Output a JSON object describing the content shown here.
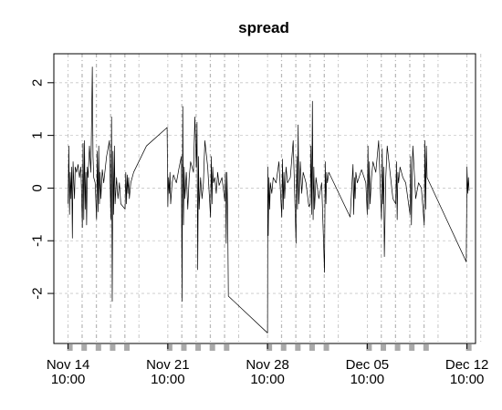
{
  "chart_data": {
    "type": "line",
    "title": "spread",
    "xlabel": "",
    "ylabel": "",
    "x_tick_labels": [
      {
        "date": "Nov 14",
        "time": "10:00"
      },
      {
        "date": "Nov 21",
        "time": "10:00"
      },
      {
        "date": "Nov 28",
        "time": "10:00"
      },
      {
        "date": "Dec 05",
        "time": "10:00"
      },
      {
        "date": "Dec 12",
        "time": "10:00"
      }
    ],
    "y_ticks": [
      -2,
      -1,
      0,
      1,
      2
    ],
    "ylim": [
      -2.95,
      2.55
    ],
    "xlim_days": [
      -1.0,
      28.6
    ],
    "grid": true,
    "legend": "none",
    "session_days": [
      0,
      1,
      2,
      3,
      4,
      7,
      8,
      9,
      10,
      11,
      14,
      15,
      16,
      17,
      18,
      21,
      22,
      23,
      24,
      25,
      28
    ],
    "day_markers": [
      0,
      1,
      2,
      3,
      4,
      7,
      8,
      9,
      10,
      11,
      14,
      15,
      16,
      17,
      18,
      21,
      22,
      23,
      24,
      25,
      28
    ],
    "series": [
      {
        "values": [
          [
            0.0,
            -0.3
          ],
          [
            0.05,
            0.8
          ],
          [
            0.1,
            -0.5
          ],
          [
            0.15,
            0.3
          ],
          [
            0.2,
            -0.2
          ],
          [
            0.25,
            0.4
          ],
          [
            0.3,
            -0.95
          ],
          [
            0.35,
            0.5
          ],
          [
            0.4,
            0.1
          ],
          [
            0.45,
            -0.2
          ],
          [
            0.5,
            0.4
          ],
          [
            0.6,
            0.3
          ],
          [
            0.7,
            0.45
          ],
          [
            0.8,
            0.2
          ],
          [
            0.9,
            0.4
          ],
          [
            1.0,
            -0.75
          ],
          [
            1.05,
            0.85
          ],
          [
            1.1,
            -0.6
          ],
          [
            1.15,
            0.9
          ],
          [
            1.2,
            -0.4
          ],
          [
            1.25,
            0.3
          ],
          [
            1.3,
            -0.7
          ],
          [
            1.35,
            0.4
          ],
          [
            1.4,
            0.2
          ],
          [
            1.5,
            0.8
          ],
          [
            1.6,
            0.3
          ],
          [
            1.7,
            2.3
          ],
          [
            1.75,
            0.6
          ],
          [
            1.8,
            0.2
          ],
          [
            1.9,
            0.1
          ],
          [
            2.0,
            -0.6
          ],
          [
            2.05,
            0.7
          ],
          [
            2.1,
            -0.45
          ],
          [
            2.15,
            0.8
          ],
          [
            2.2,
            -0.3
          ],
          [
            2.25,
            0.3
          ],
          [
            2.3,
            -0.2
          ],
          [
            2.4,
            0.35
          ],
          [
            2.5,
            0.1
          ],
          [
            2.7,
            0.6
          ],
          [
            2.9,
            0.9
          ],
          [
            3.0,
            -0.6
          ],
          [
            3.05,
            1.35
          ],
          [
            3.1,
            -2.15
          ],
          [
            3.15,
            0.7
          ],
          [
            3.2,
            -0.5
          ],
          [
            3.25,
            0.8
          ],
          [
            3.3,
            -0.3
          ],
          [
            3.4,
            0.2
          ],
          [
            3.5,
            -0.2
          ],
          [
            3.6,
            0.1
          ],
          [
            3.7,
            -0.3
          ],
          [
            4.0,
            -0.4
          ],
          [
            4.05,
            0.3
          ],
          [
            4.1,
            -0.3
          ],
          [
            4.15,
            0.25
          ],
          [
            4.2,
            -0.1
          ],
          [
            4.25,
            0.2
          ],
          [
            4.3,
            -0.2
          ],
          [
            4.4,
            0.1
          ],
          [
            4.6,
            0.3
          ],
          [
            5.5,
            0.8
          ],
          [
            6.95,
            1.15
          ],
          [
            7.0,
            -0.35
          ],
          [
            7.05,
            0.2
          ],
          [
            7.1,
            -0.1
          ],
          [
            7.15,
            0.3
          ],
          [
            7.2,
            -0.3
          ],
          [
            7.3,
            0.1
          ],
          [
            7.4,
            0.25
          ],
          [
            7.6,
            0.1
          ],
          [
            7.8,
            0.4
          ],
          [
            7.95,
            0.6
          ],
          [
            8.0,
            -2.15
          ],
          [
            8.05,
            1.55
          ],
          [
            8.1,
            -0.7
          ],
          [
            8.15,
            0.4
          ],
          [
            8.2,
            -0.2
          ],
          [
            8.3,
            0.3
          ],
          [
            8.4,
            -0.4
          ],
          [
            8.5,
            0.2
          ],
          [
            8.6,
            0.5
          ],
          [
            8.8,
            0.3
          ],
          [
            8.9,
            1.35
          ],
          [
            9.0,
            0.4
          ],
          [
            9.05,
            1.25
          ],
          [
            9.1,
            -1.55
          ],
          [
            9.15,
            0.6
          ],
          [
            9.2,
            -0.4
          ],
          [
            9.3,
            0.2
          ],
          [
            9.4,
            -0.2
          ],
          [
            9.5,
            0.1
          ],
          [
            9.6,
            0.9
          ],
          [
            9.8,
            0.4
          ],
          [
            10.0,
            -0.55
          ],
          [
            10.05,
            0.6
          ],
          [
            10.1,
            -0.3
          ],
          [
            10.15,
            0.4
          ],
          [
            10.2,
            0.1
          ],
          [
            10.3,
            0.2
          ],
          [
            10.4,
            -0.1
          ],
          [
            10.5,
            0.3
          ],
          [
            10.6,
            0.05
          ],
          [
            10.8,
            0.2
          ],
          [
            11.0,
            -0.25
          ],
          [
            11.05,
            0.3
          ],
          [
            11.1,
            -1.05
          ],
          [
            11.15,
            0.3
          ],
          [
            11.2,
            -0.4
          ],
          [
            11.25,
            -2.05
          ],
          [
            14.0,
            -2.75
          ],
          [
            14.02,
            0.4
          ],
          [
            14.05,
            -0.9
          ],
          [
            14.1,
            0.2
          ],
          [
            14.15,
            -0.4
          ],
          [
            14.2,
            0.1
          ],
          [
            14.3,
            -0.1
          ],
          [
            14.4,
            0.2
          ],
          [
            14.6,
            0.1
          ],
          [
            14.8,
            0.5
          ],
          [
            15.0,
            -0.55
          ],
          [
            15.05,
            0.55
          ],
          [
            15.1,
            -0.4
          ],
          [
            15.15,
            0.3
          ],
          [
            15.2,
            -0.2
          ],
          [
            15.3,
            0.4
          ],
          [
            15.4,
            0.1
          ],
          [
            15.6,
            0.2
          ],
          [
            15.8,
            0.9
          ],
          [
            16.0,
            -1.05
          ],
          [
            16.05,
            0.6
          ],
          [
            16.1,
            -0.4
          ],
          [
            16.15,
            1.2
          ],
          [
            16.2,
            -0.3
          ],
          [
            16.3,
            0.5
          ],
          [
            16.4,
            -0.1
          ],
          [
            16.5,
            0.3
          ],
          [
            16.7,
            0.1
          ],
          [
            16.9,
            -0.35
          ],
          [
            17.0,
            -0.3
          ],
          [
            17.05,
            0.8
          ],
          [
            17.1,
            -0.5
          ],
          [
            17.15,
            1.65
          ],
          [
            17.2,
            -0.6
          ],
          [
            17.25,
            0.4
          ],
          [
            17.3,
            -0.4
          ],
          [
            17.4,
            0.2
          ],
          [
            17.6,
            -0.2
          ],
          [
            17.8,
            0.1
          ],
          [
            18.0,
            -1.6
          ],
          [
            18.05,
            0.5
          ],
          [
            18.1,
            -0.3
          ],
          [
            18.15,
            0.3
          ],
          [
            18.2,
            0.1
          ],
          [
            18.3,
            0.3
          ],
          [
            19.8,
            -0.55
          ],
          [
            20.0,
            0.45
          ],
          [
            20.05,
            -0.5
          ],
          [
            20.1,
            0.2
          ],
          [
            20.15,
            -0.2
          ],
          [
            20.2,
            0.3
          ],
          [
            20.3,
            0.1
          ],
          [
            20.6,
            0.35
          ],
          [
            20.9,
            0.1
          ],
          [
            21.0,
            -0.5
          ],
          [
            21.05,
            0.8
          ],
          [
            21.1,
            -0.4
          ],
          [
            21.15,
            0.5
          ],
          [
            21.2,
            -0.3
          ],
          [
            21.3,
            0.2
          ],
          [
            21.4,
            0.5
          ],
          [
            21.6,
            0.3
          ],
          [
            21.8,
            0.9
          ],
          [
            22.0,
            -0.6
          ],
          [
            22.05,
            0.75
          ],
          [
            22.1,
            -0.3
          ],
          [
            22.15,
            0.4
          ],
          [
            22.2,
            -1.3
          ],
          [
            22.3,
            0.2
          ],
          [
            22.4,
            0.8
          ],
          [
            22.6,
            0.3
          ],
          [
            22.8,
            -0.2
          ],
          [
            23.0,
            -0.3
          ],
          [
            23.05,
            0.5
          ],
          [
            23.1,
            -0.6
          ],
          [
            23.15,
            0.3
          ],
          [
            23.2,
            0.1
          ],
          [
            23.3,
            0.4
          ],
          [
            23.5,
            0.2
          ],
          [
            23.7,
            0.1
          ],
          [
            24.0,
            -0.5
          ],
          [
            24.05,
            0.6
          ],
          [
            24.1,
            -0.7
          ],
          [
            24.15,
            0.2
          ],
          [
            24.2,
            0.8
          ],
          [
            24.3,
            0.3
          ],
          [
            24.4,
            -0.2
          ],
          [
            24.6,
            0.1
          ],
          [
            24.8,
            0.0
          ],
          [
            25.0,
            -0.7
          ],
          [
            25.05,
            0.9
          ],
          [
            25.1,
            -0.4
          ],
          [
            25.15,
            0.8
          ],
          [
            25.2,
            0.2
          ],
          [
            27.95,
            -1.4
          ],
          [
            28.0,
            0.4
          ],
          [
            28.05,
            -0.1
          ],
          [
            28.1,
            0.2
          ],
          [
            28.15,
            -0.05
          ]
        ]
      }
    ]
  }
}
